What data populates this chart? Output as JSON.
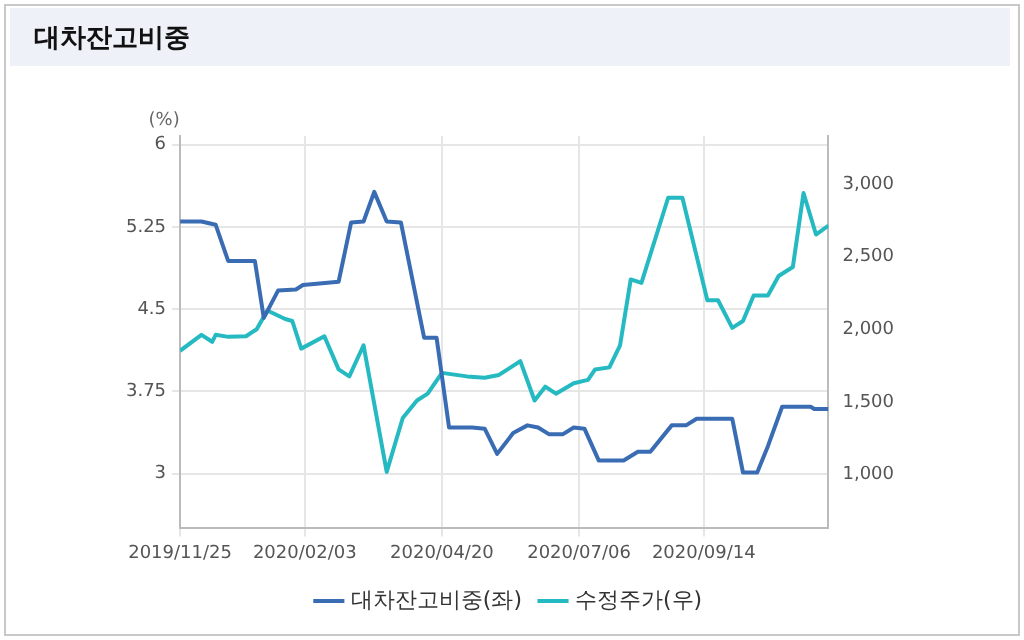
{
  "chart_data": {
    "type": "line",
    "title": "대차잔고비중",
    "ylabel": "(%)",
    "series": [
      {
        "name": "대차잔고비중(좌)",
        "color": "#3a6cb4",
        "x": [
          "2019-11-25",
          "2019-12-07",
          "2019-12-15",
          "2019-12-22",
          "2020-01-06",
          "2020-01-11",
          "2020-01-19",
          "2020-01-29",
          "2020-02-02",
          "2020-02-22",
          "2020-02-29",
          "2020-03-07",
          "2020-03-13",
          "2020-03-20",
          "2020-03-28",
          "2020-04-10",
          "2020-04-17",
          "2020-04-24",
          "2020-05-07",
          "2020-05-14",
          "2020-05-21",
          "2020-05-30",
          "2020-06-07",
          "2020-06-13",
          "2020-06-19",
          "2020-06-27",
          "2020-07-03",
          "2020-07-09",
          "2020-07-17",
          "2020-07-31",
          "2020-08-08",
          "2020-08-15",
          "2020-08-27",
          "2020-09-04",
          "2020-09-10",
          "2020-09-30",
          "2020-10-06",
          "2020-10-14",
          "2020-10-20",
          "2020-10-28",
          "2020-11-13",
          "2020-11-15",
          "2020-11-23"
        ],
        "values": [
          5.3,
          5.3,
          5.27,
          4.94,
          4.94,
          4.42,
          4.67,
          4.68,
          4.72,
          4.75,
          5.29,
          5.3,
          5.57,
          5.3,
          5.29,
          4.24,
          4.24,
          3.42,
          3.42,
          3.41,
          3.18,
          3.37,
          3.44,
          3.42,
          3.36,
          3.36,
          3.42,
          3.41,
          3.12,
          3.12,
          3.2,
          3.2,
          3.44,
          3.44,
          3.5,
          3.5,
          3.01,
          3.01,
          3.25,
          3.61,
          3.61,
          3.59,
          3.59
        ]
      },
      {
        "name": "수정주가(우)",
        "color": "#25b9c2",
        "axis": "y2",
        "x": [
          "2019-11-25",
          "2019-12-07",
          "2019-12-13",
          "2019-12-15",
          "2019-12-22",
          "2020-01-01",
          "2020-01-07",
          "2020-01-13",
          "2020-01-23",
          "2020-01-27",
          "2020-02-01",
          "2020-02-14",
          "2020-02-22",
          "2020-02-28",
          "2020-03-07",
          "2020-03-20",
          "2020-03-29",
          "2020-04-06",
          "2020-04-12",
          "2020-04-20",
          "2020-05-04",
          "2020-05-14",
          "2020-05-22",
          "2020-06-03",
          "2020-06-11",
          "2020-06-17",
          "2020-06-23",
          "2020-07-03",
          "2020-07-11",
          "2020-07-15",
          "2020-07-23",
          "2020-07-29",
          "2020-08-04",
          "2020-08-10",
          "2020-08-25",
          "2020-09-02",
          "2020-09-16",
          "2020-09-22",
          "2020-09-30",
          "2020-10-06",
          "2020-10-12",
          "2020-10-20",
          "2020-10-26",
          "2020-11-03",
          "2020-11-09",
          "2020-11-16",
          "2020-11-23"
        ],
        "values": [
          1852,
          1962,
          1914,
          1962,
          1948,
          1952,
          2000,
          2129,
          2071,
          2057,
          1867,
          1952,
          1724,
          1676,
          1890,
          1019,
          1390,
          1510,
          1557,
          1700,
          1676,
          1667,
          1686,
          1781,
          1510,
          1605,
          1557,
          1629,
          1652,
          1724,
          1738,
          1890,
          2343,
          2319,
          2905,
          2905,
          2200,
          2200,
          2010,
          2057,
          2233,
          2233,
          2367,
          2429,
          2938,
          2652,
          2714
        ]
      }
    ],
    "xlim": [
      "2019-11-25",
      "2020-11-23"
    ],
    "xticks": [
      {
        "value": "2019-11-25",
        "label": "2019/11/25"
      },
      {
        "value": "2020-02-03",
        "label": "2020/02/03"
      },
      {
        "value": "2020-04-20",
        "label": "2020/04/20"
      },
      {
        "value": "2020-07-06",
        "label": "2020/07/06"
      },
      {
        "value": "2020-09-14",
        "label": "2020/09/14"
      }
    ],
    "ylim": [
      2.5,
      6.08
    ],
    "yticks": [
      3,
      3.75,
      4.5,
      5.25,
      6
    ],
    "y2lim": [
      630,
      3330
    ],
    "y2ticks": [
      {
        "value": 1000,
        "label": "1,000"
      },
      {
        "value": 1500,
        "label": "1,500"
      },
      {
        "value": 2000,
        "label": "2,000"
      },
      {
        "value": 2500,
        "label": "2,500"
      },
      {
        "value": 3000,
        "label": "3,000"
      }
    ],
    "grid": true,
    "legend": "bottom",
    "marker": "none",
    "line_style": "solid"
  }
}
